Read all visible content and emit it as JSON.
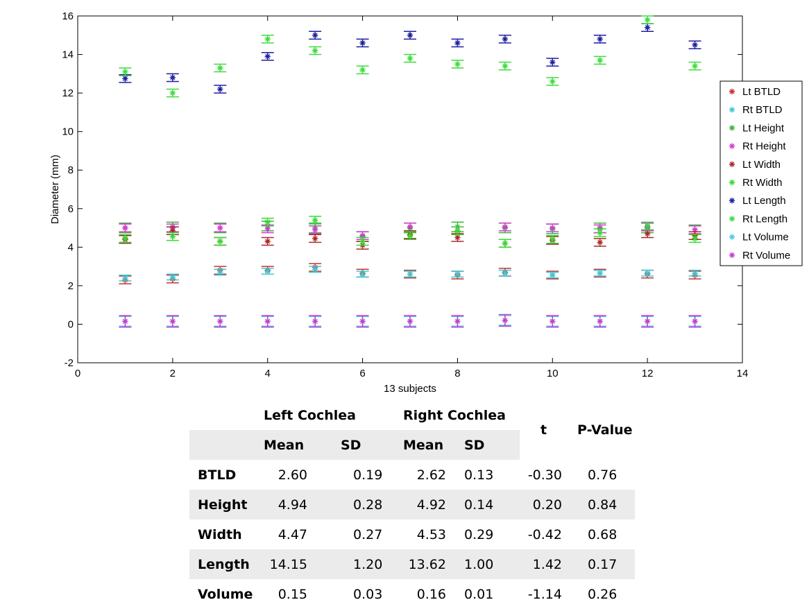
{
  "chart_data": {
    "type": "scatter",
    "title": "",
    "xlabel": "13 subjects",
    "ylabel": "Diameter (mm)",
    "xlim": [
      0,
      14
    ],
    "ylim": [
      -2,
      16
    ],
    "xticks": [
      0,
      2,
      4,
      6,
      8,
      10,
      12,
      14
    ],
    "yticks": [
      -2,
      0,
      2,
      4,
      6,
      8,
      10,
      12,
      14,
      16
    ],
    "x": [
      1,
      2,
      3,
      4,
      5,
      6,
      7,
      8,
      9,
      10,
      11,
      12,
      13
    ],
    "legend_position": "right",
    "series": [
      {
        "name": "Lt BTLD",
        "color": "#c83232",
        "values": [
          2.3,
          2.35,
          2.8,
          2.8,
          2.95,
          2.65,
          2.6,
          2.55,
          2.7,
          2.55,
          2.65,
          2.6,
          2.55
        ],
        "err": [
          0.2,
          0.2,
          0.2,
          0.2,
          0.2,
          0.2,
          0.2,
          0.2,
          0.2,
          0.2,
          0.2,
          0.2,
          0.2
        ]
      },
      {
        "name": "Rt BTLD",
        "color": "#3cc8d2",
        "values": [
          2.4,
          2.45,
          2.7,
          2.75,
          2.85,
          2.6,
          2.6,
          2.6,
          2.65,
          2.55,
          2.65,
          2.65,
          2.65
        ],
        "err": [
          0.15,
          0.15,
          0.15,
          0.15,
          0.15,
          0.15,
          0.15,
          0.15,
          0.15,
          0.15,
          0.15,
          0.15,
          0.15
        ]
      },
      {
        "name": "Lt Height",
        "color": "#3cb43c",
        "values": [
          5.0,
          5.05,
          5.0,
          5.1,
          5.0,
          4.55,
          5.0,
          5.05,
          5.0,
          4.95,
          5.0,
          5.0,
          4.9
        ],
        "err": [
          0.25,
          0.25,
          0.25,
          0.25,
          0.25,
          0.25,
          0.25,
          0.25,
          0.25,
          0.25,
          0.25,
          0.25,
          0.25
        ]
      },
      {
        "name": "Rt Height",
        "color": "#d23cd2",
        "values": [
          5.0,
          5.0,
          5.0,
          4.95,
          4.9,
          4.6,
          5.05,
          4.85,
          5.05,
          5.0,
          4.95,
          5.05,
          4.9
        ],
        "err": [
          0.2,
          0.2,
          0.2,
          0.2,
          0.2,
          0.2,
          0.2,
          0.2,
          0.2,
          0.2,
          0.2,
          0.2,
          0.2
        ]
      },
      {
        "name": "Lt Width",
        "color": "#aa2828",
        "values": [
          4.4,
          4.85,
          4.3,
          4.3,
          4.45,
          4.1,
          4.65,
          4.5,
          4.2,
          4.35,
          4.25,
          4.7,
          4.6
        ],
        "err": [
          0.2,
          0.2,
          0.2,
          0.2,
          0.2,
          0.2,
          0.2,
          0.2,
          0.2,
          0.2,
          0.2,
          0.2,
          0.2
        ]
      },
      {
        "name": "Rt Width",
        "color": "#32dc32",
        "values": [
          4.45,
          4.55,
          4.3,
          5.3,
          5.4,
          4.3,
          4.6,
          4.85,
          4.2,
          4.4,
          4.75,
          5.1,
          4.45
        ],
        "err": [
          0.2,
          0.2,
          0.2,
          0.2,
          0.2,
          0.2,
          0.2,
          0.2,
          0.2,
          0.2,
          0.2,
          0.2,
          0.2
        ]
      },
      {
        "name": "Lt Length",
        "color": "#1e1ea0",
        "values": [
          12.75,
          12.8,
          12.2,
          13.9,
          15.0,
          14.6,
          15.0,
          14.6,
          14.8,
          13.6,
          14.8,
          15.4,
          14.5
        ],
        "err": [
          0.2,
          0.2,
          0.2,
          0.2,
          0.2,
          0.2,
          0.2,
          0.2,
          0.2,
          0.2,
          0.2,
          0.2,
          0.2
        ]
      },
      {
        "name": "Rt Length",
        "color": "#3cdc3c",
        "values": [
          13.1,
          12.0,
          13.3,
          14.8,
          14.2,
          13.2,
          13.8,
          13.5,
          13.4,
          12.6,
          13.7,
          15.8,
          13.4
        ],
        "err": [
          0.2,
          0.2,
          0.2,
          0.2,
          0.2,
          0.2,
          0.2,
          0.2,
          0.2,
          0.2,
          0.2,
          0.2,
          0.2
        ]
      },
      {
        "name": "Lt Volume",
        "color": "#50c8e6",
        "values": [
          0.15,
          0.15,
          0.15,
          0.15,
          0.15,
          0.15,
          0.15,
          0.15,
          0.2,
          0.15,
          0.15,
          0.15,
          0.15
        ],
        "err": [
          0.25,
          0.25,
          0.25,
          0.25,
          0.25,
          0.25,
          0.25,
          0.25,
          0.25,
          0.25,
          0.25,
          0.25,
          0.25
        ]
      },
      {
        "name": "Rt Volume",
        "color": "#c83cd2",
        "values": [
          0.15,
          0.15,
          0.15,
          0.15,
          0.15,
          0.15,
          0.15,
          0.15,
          0.2,
          0.15,
          0.15,
          0.15,
          0.15
        ],
        "err": [
          0.3,
          0.3,
          0.3,
          0.3,
          0.3,
          0.3,
          0.3,
          0.3,
          0.3,
          0.3,
          0.3,
          0.3,
          0.3
        ]
      }
    ]
  },
  "table": {
    "group_headers": [
      "Left Cochlea",
      "Right Cochlea",
      "t",
      "P-Value"
    ],
    "sub_headers": [
      "Mean",
      "SD",
      "Mean",
      "SD"
    ],
    "rows": [
      {
        "label": "BTLD",
        "lmean": "2.60",
        "lsd": "0.19",
        "rmean": "2.62",
        "rsd": "0.13",
        "t": "-0.30",
        "p": "0.76"
      },
      {
        "label": "Height",
        "lmean": "4.94",
        "lsd": "0.28",
        "rmean": "4.92",
        "rsd": "0.14",
        "t": "0.20",
        "p": "0.84"
      },
      {
        "label": "Width",
        "lmean": "4.47",
        "lsd": "0.27",
        "rmean": "4.53",
        "rsd": "0.29",
        "t": "-0.42",
        "p": "0.68"
      },
      {
        "label": "Length",
        "lmean": "14.15",
        "lsd": "1.20",
        "rmean": "13.62",
        "rsd": "1.00",
        "t": "1.42",
        "p": "0.17"
      },
      {
        "label": "Volume",
        "lmean": "0.15",
        "lsd": "0.03",
        "rmean": "0.16",
        "rsd": "0.01",
        "t": "-1.14",
        "p": "0.26"
      }
    ]
  }
}
